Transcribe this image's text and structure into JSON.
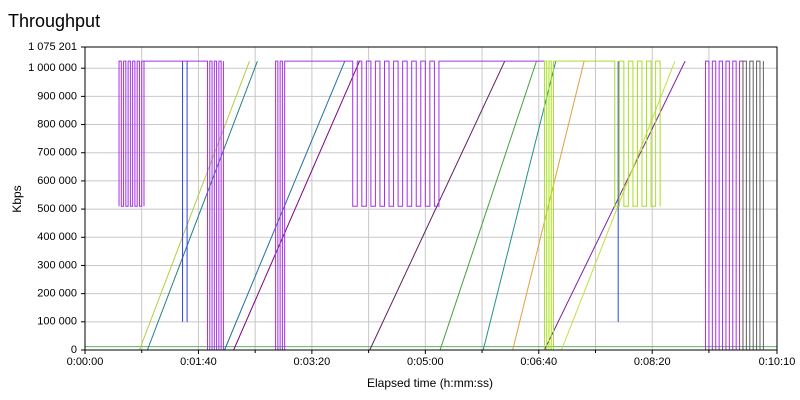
{
  "chart_data": {
    "type": "line",
    "title": "Throughput",
    "xlabel": "Elapsed time (h:mm:ss)",
    "ylabel": "Kbps",
    "xlim": [
      0,
      610
    ],
    "ylim": [
      0,
      1075201
    ],
    "xticks": [
      {
        "value": 0,
        "label": "0:00:00"
      },
      {
        "value": 100,
        "label": "0:01:40"
      },
      {
        "value": 200,
        "label": "0:03:20"
      },
      {
        "value": 300,
        "label": "0:05:00"
      },
      {
        "value": 400,
        "label": "0:06:40"
      },
      {
        "value": 500,
        "label": "0:08:20"
      },
      {
        "value": 610,
        "label": "0:10:10"
      }
    ],
    "x_minor_ticks": [
      50,
      150,
      250,
      350,
      450,
      550
    ],
    "yticks": [
      0,
      {
        "value": 100000,
        "label": "100 000"
      },
      {
        "value": 200000,
        "label": "200 000"
      },
      {
        "value": 300000,
        "label": "300 000"
      },
      {
        "value": 400000,
        "label": "400 000"
      },
      {
        "value": 500000,
        "label": "500 000"
      },
      {
        "value": 600000,
        "label": "600 000"
      },
      {
        "value": 700000,
        "label": "700 000"
      },
      {
        "value": 800000,
        "label": "800 000"
      },
      {
        "value": 900000,
        "label": "900 000"
      },
      {
        "value": 1000000,
        "label": "1 000 000"
      },
      {
        "value": 1075201,
        "label": "1 075 201"
      }
    ],
    "grid": true,
    "series": [
      {
        "color": "#60b060",
        "x": [
          0,
          610
        ],
        "values": [
          12000,
          12000
        ]
      },
      {
        "color": "#b0d040",
        "x": [
          48,
          145
        ],
        "values": [
          0,
          1025000
        ]
      },
      {
        "color": "#208080",
        "x": [
          55,
          152
        ],
        "values": [
          0,
          1025000
        ]
      },
      {
        "color": "#2070a0",
        "x": [
          123,
          229
        ],
        "values": [
          0,
          1025000
        ]
      },
      {
        "color": "#800080",
        "x": [
          131,
          242
        ],
        "values": [
          0,
          1025000
        ]
      },
      {
        "color": "#602060",
        "x": [
          251,
          370
        ],
        "values": [
          0,
          1025000
        ]
      },
      {
        "color": "#40a040",
        "x": [
          313,
          398
        ],
        "values": [
          0,
          1025000
        ]
      },
      {
        "color": "#209090",
        "x": [
          351,
          415
        ],
        "values": [
          0,
          1025000
        ]
      },
      {
        "color": "#e0a040",
        "x": [
          377,
          440
        ],
        "values": [
          0,
          1025000
        ]
      },
      {
        "color": "#8020a0",
        "x": [
          405,
          529
        ],
        "values": [
          0,
          1025000
        ]
      },
      {
        "color": "#c0e040",
        "x": [
          420,
          520
        ],
        "values": [
          0,
          1025000
        ]
      },
      {
        "color": "#3040e0",
        "x": [
          86,
          86,
          86,
          90,
          90,
          90,
          470,
          470
        ],
        "values": [
          1025000,
          100000,
          null,
          1025000,
          100000,
          null,
          1025000,
          100000
        ]
      },
      {
        "color": "#a530e8",
        "x": [
          30,
          30,
          32,
          32,
          34,
          34,
          36,
          36,
          38,
          38,
          40,
          40,
          42,
          42,
          44,
          44,
          46,
          46,
          48,
          48,
          50,
          50,
          52,
          52,
          52,
          108,
          108,
          110,
          110,
          112,
          112,
          114,
          114,
          116,
          116,
          118,
          118,
          120,
          120,
          122,
          122,
          140,
          168,
          168,
          170,
          170,
          172,
          172,
          174,
          174,
          176,
          176,
          236,
          236,
          240,
          240,
          244,
          244,
          248,
          248,
          252,
          252,
          256,
          256,
          260,
          260,
          264,
          264,
          268,
          268,
          272,
          272,
          276,
          276,
          280,
          280,
          284,
          284,
          288,
          288,
          292,
          292,
          296,
          296,
          300,
          300,
          304,
          304,
          308,
          308,
          312,
          312,
          405,
          450,
          547,
          547,
          550,
          550,
          553,
          553,
          556,
          556,
          559,
          559,
          562,
          562,
          565,
          565,
          568,
          568,
          571,
          571,
          574,
          574,
          577,
          577,
          580,
          580
        ],
        "values": [
          510000,
          1025000,
          1025000,
          510000,
          510000,
          1025000,
          1025000,
          510000,
          510000,
          1025000,
          1025000,
          510000,
          510000,
          1025000,
          1025000,
          510000,
          510000,
          1025000,
          1025000,
          510000,
          510000,
          1025000,
          1025000,
          510000,
          1025000,
          1025000,
          0,
          0,
          1025000,
          1025000,
          0,
          0,
          1025000,
          1025000,
          0,
          0,
          1025000,
          1025000,
          0,
          0,
          1025000,
          null,
          0,
          1025000,
          1025000,
          0,
          0,
          1025000,
          1025000,
          0,
          0,
          1025000,
          1025000,
          510000,
          510000,
          1025000,
          1025000,
          510000,
          510000,
          1025000,
          1025000,
          510000,
          510000,
          1025000,
          1025000,
          510000,
          510000,
          1025000,
          1025000,
          510000,
          510000,
          1025000,
          1025000,
          510000,
          510000,
          1025000,
          1025000,
          510000,
          510000,
          1025000,
          1025000,
          510000,
          510000,
          1025000,
          1025000,
          510000,
          510000,
          1025000,
          1025000,
          510000,
          510000,
          1025000,
          1025000,
          null,
          0,
          1025000,
          1025000,
          0,
          0,
          1025000,
          1025000,
          0,
          0,
          1025000,
          1025000,
          0,
          0,
          1025000,
          1025000,
          0,
          0,
          1025000,
          1025000,
          0,
          0,
          1025000,
          1025000,
          0
        ]
      },
      {
        "color": "#a8e020",
        "x": [
          405,
          405,
          407,
          407,
          409,
          409,
          411,
          411,
          413,
          413,
          467,
          467,
          467,
          471,
          471,
          475,
          475,
          479,
          479,
          483,
          483,
          487,
          487,
          491,
          491,
          495,
          495,
          499,
          499,
          503,
          503,
          507,
          507
        ],
        "values": [
          0,
          1025000,
          1025000,
          0,
          0,
          1025000,
          1025000,
          0,
          0,
          1025000,
          1025000,
          1025000,
          510000,
          510000,
          1025000,
          1025000,
          510000,
          510000,
          1025000,
          1025000,
          510000,
          510000,
          1025000,
          1025000,
          510000,
          510000,
          1025000,
          1025000,
          510000,
          510000,
          1025000,
          1025000,
          510000
        ]
      },
      {
        "color": "#606060",
        "x": [
          580,
          580,
          583,
          583,
          586,
          586,
          589,
          589,
          592,
          592,
          595,
          595,
          598,
          598
        ],
        "values": [
          0,
          1025000,
          1025000,
          0,
          0,
          1025000,
          1025000,
          0,
          0,
          1025000,
          1025000,
          0,
          0,
          1025000
        ]
      }
    ]
  }
}
